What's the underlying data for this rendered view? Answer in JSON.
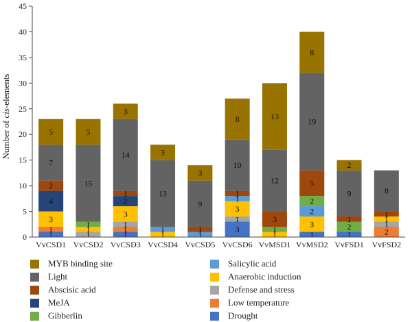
{
  "chart_data": {
    "type": "bar",
    "stacked": true,
    "ylabel_parts": [
      "Number of ",
      "cis",
      "-elements"
    ],
    "ylim": [
      0,
      45
    ],
    "yticks": [
      0,
      5,
      10,
      15,
      20,
      25,
      30,
      35,
      40,
      45
    ],
    "categories": [
      "VvCSD1",
      "VvCSD2",
      "VvCSD3",
      "VvCSD4",
      "VvCSD5",
      "VvCSD6",
      "VvMSD1",
      "VvMSD2",
      "VvFSD1",
      "VvFSD2"
    ],
    "series": [
      {
        "name": "Drought",
        "color": "#4472c4",
        "values": [
          1,
          0,
          1,
          0,
          0,
          3,
          0,
          1,
          1,
          0
        ]
      },
      {
        "name": "Low temperature",
        "color": "#ed7d31",
        "values": [
          1,
          0,
          1,
          0,
          0,
          0,
          0,
          0,
          0,
          2
        ]
      },
      {
        "name": "Defense and stress",
        "color": "#a5a5a5",
        "values": [
          0,
          1,
          1,
          0,
          0,
          1,
          0,
          0,
          0,
          1
        ]
      },
      {
        "name": "Anaerobic induction",
        "color": "#ffc000",
        "values": [
          3,
          1,
          3,
          1,
          0,
          3,
          1,
          3,
          0,
          1
        ]
      },
      {
        "name": "Salicylic acid",
        "color": "#5b9bd5",
        "values": [
          0,
          0,
          0,
          1,
          1,
          1,
          0,
          2,
          0,
          0
        ]
      },
      {
        "name": "Gibberlin",
        "color": "#70ad47",
        "values": [
          0,
          1,
          0,
          0,
          0,
          0,
          1,
          2,
          2,
          0
        ]
      },
      {
        "name": "MeJA",
        "color": "#264478",
        "values": [
          4,
          0,
          2,
          0,
          0,
          0,
          0,
          0,
          0,
          0
        ]
      },
      {
        "name": "Abscisic acid",
        "color": "#9e480e",
        "values": [
          2,
          0,
          1,
          0,
          1,
          1,
          3,
          5,
          1,
          1
        ]
      },
      {
        "name": "Light",
        "color": "#636363",
        "values": [
          7,
          15,
          14,
          13,
          9,
          10,
          12,
          19,
          9,
          8
        ]
      },
      {
        "name": "MYB binding site",
        "color": "#997300",
        "values": [
          5,
          5,
          3,
          3,
          3,
          8,
          13,
          8,
          2,
          0
        ]
      }
    ],
    "legend_order": [
      "MYB binding site",
      "Salicylic acid",
      "Light",
      "Anaerobic induction",
      "Abscisic acid",
      "Defense and stress",
      "MeJA",
      "Low temperature",
      "Gibberlin",
      "Drought"
    ],
    "legend_position": "bottom",
    "grid": false
  }
}
